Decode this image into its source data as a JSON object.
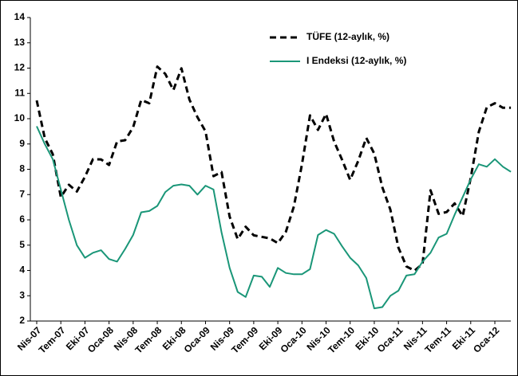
{
  "chart_data": {
    "type": "line",
    "categories": [
      "Nis-07",
      null,
      null,
      "Tem-07",
      null,
      null,
      "Eki-07",
      null,
      null,
      "Oca-08",
      null,
      null,
      "Nis-08",
      null,
      null,
      "Tem-08",
      null,
      null,
      "Eki-08",
      null,
      null,
      "Oca-09",
      null,
      null,
      "Nis-09",
      null,
      null,
      "Tem-09",
      null,
      null,
      "Eki-09",
      null,
      null,
      "Oca-10",
      null,
      null,
      "Nis-10",
      null,
      null,
      "Tem-10",
      null,
      null,
      "Eki-10",
      null,
      null,
      "Oca-11",
      null,
      null,
      "Nis-11",
      null,
      null,
      "Tem-11",
      null,
      null,
      "Eki-11",
      null,
      null,
      "Oca-12",
      null,
      null
    ],
    "series": [
      {
        "name": "TÜFE (12-aylık, %)",
        "color": "#000000",
        "dashed": true,
        "values": [
          10.72,
          9.23,
          8.6,
          6.9,
          7.39,
          7.12,
          7.7,
          8.4,
          8.39,
          8.17,
          9.1,
          9.15,
          9.66,
          10.74,
          10.61,
          12.06,
          11.77,
          11.13,
          11.99,
          10.76,
          10.06,
          9.5,
          7.73,
          7.89,
          6.13,
          5.24,
          5.73,
          5.39,
          5.33,
          5.27,
          5.08,
          5.53,
          6.53,
          8.19,
          10.13,
          9.56,
          10.19,
          9.1,
          8.37,
          7.58,
          8.33,
          9.24,
          8.62,
          7.29,
          6.4,
          4.9,
          4.16,
          3.99,
          4.26,
          7.17,
          6.24,
          6.31,
          6.65,
          6.15,
          7.66,
          9.48,
          10.45,
          10.61,
          10.43,
          10.43
        ]
      },
      {
        "name": "I Endeksi (12-aylık, %)",
        "color": "#1a9678",
        "dashed": false,
        "values": [
          9.7,
          9.0,
          8.4,
          7.2,
          6.0,
          5.0,
          4.5,
          4.7,
          4.8,
          4.45,
          4.35,
          4.85,
          5.4,
          6.3,
          6.35,
          6.55,
          7.1,
          7.35,
          7.4,
          7.35,
          7.0,
          7.35,
          7.2,
          5.5,
          4.1,
          3.15,
          2.95,
          3.8,
          3.75,
          3.35,
          4.1,
          3.9,
          3.85,
          3.85,
          4.05,
          5.4,
          5.6,
          5.45,
          4.95,
          4.5,
          4.2,
          3.7,
          2.5,
          2.55,
          3.0,
          3.2,
          3.8,
          3.85,
          4.35,
          4.7,
          5.3,
          5.45,
          6.2,
          6.9,
          7.6,
          8.2,
          8.1,
          8.4,
          8.1,
          7.9
        ]
      }
    ],
    "ylim": [
      2,
      14
    ],
    "yticks": [
      2,
      3,
      4,
      5,
      6,
      7,
      8,
      9,
      10,
      11,
      12,
      13,
      14
    ],
    "grid": false,
    "legend": "top-right"
  }
}
